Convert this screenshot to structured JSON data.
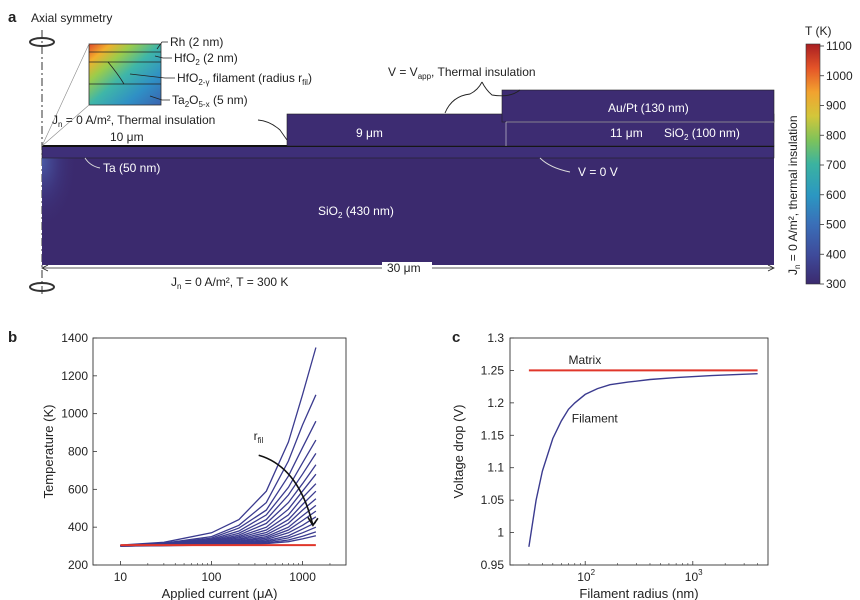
{
  "panel_a": {
    "letter": "a",
    "axial_symmetry": "Axial symmetry",
    "inset_labels": {
      "rh": "Rh (2 nm)",
      "hfo2_a": "HfO",
      "hfo2_sub": "2",
      "hfo2_b": " (2 nm)",
      "fil_a": "HfO",
      "fil_sub": "2-γ",
      "fil_b": " filament (radius r",
      "fil_sub2": "fil",
      "fil_c": ")",
      "ta2o5_a": "Ta",
      "ta2o5_sub1": "2",
      "ta2o5_b": "O",
      "ta2o5_sub2": "5-x",
      "ta2o5_c": " (5 nm)"
    },
    "top_bc_a": "V = V",
    "top_bc_sub": "app",
    "top_bc_b": ", Thermal insulation",
    "left_bc_a": "J",
    "left_bc_sub": "n",
    "left_bc_b": " = 0 A/m², Thermal insulation",
    "dim_10": "10 μm",
    "dim_9": "9 μm",
    "dim_11": "11 μm",
    "aupt": "Au/Pt (130 nm)",
    "sio2_top_a": "SiO",
    "sio2_top_sub": "2",
    "sio2_top_b": " (100 nm)",
    "ta": "Ta (50 nm)",
    "v0": "V = 0 V",
    "sio2_bulk_a": "SiO",
    "sio2_bulk_sub": "2",
    "sio2_bulk_b": " (430 nm)",
    "dim_30": "30 μm",
    "bottom_bc_a": "J",
    "bottom_bc_sub": "n",
    "bottom_bc_b": " = 0 A/m², T = 300 K",
    "right_bc_a": "J",
    "right_bc_sub": "n",
    "right_bc_b": " = 0 A/m², thermal insulation",
    "colorbar_title": "T (K)",
    "colorbar_ticks": [
      "1100",
      "1000",
      "900",
      "800",
      "700",
      "600",
      "500",
      "400",
      "300"
    ]
  },
  "chart_data": [
    {
      "type": "line",
      "panel": "b",
      "xlabel": "Applied current (μA)",
      "ylabel": "Temperature (K)",
      "xscale": "log",
      "xlim": [
        5,
        3000
      ],
      "ylim": [
        200,
        1400
      ],
      "xticks": [
        "10",
        "100",
        "1000"
      ],
      "yticks": [
        "200",
        "400",
        "600",
        "800",
        "1000",
        "1200",
        "1400"
      ],
      "annotation": "r",
      "annotation_sub": "fil",
      "x": [
        10,
        30,
        100,
        200,
        400,
        700,
        1000,
        1400
      ],
      "series": [
        {
          "values": [
            305,
            320,
            370,
            440,
            590,
            850,
            1100,
            1350
          ]
        },
        {
          "values": [
            304,
            316,
            350,
            410,
            530,
            750,
            940,
            1100
          ]
        },
        {
          "values": [
            304,
            314,
            342,
            395,
            490,
            670,
            820,
            960
          ]
        },
        {
          "values": [
            303,
            312,
            336,
            380,
            465,
            610,
            740,
            860
          ]
        },
        {
          "values": [
            303,
            311,
            331,
            368,
            440,
            570,
            680,
            790
          ]
        },
        {
          "values": [
            302,
            310,
            327,
            358,
            420,
            530,
            630,
            730
          ]
        },
        {
          "values": [
            302,
            309,
            324,
            350,
            400,
            495,
            590,
            680
          ]
        },
        {
          "values": [
            302,
            308,
            321,
            343,
            385,
            465,
            555,
            630
          ]
        },
        {
          "values": [
            301,
            307,
            318,
            337,
            372,
            440,
            520,
            590
          ]
        },
        {
          "values": [
            301,
            306,
            316,
            332,
            360,
            420,
            490,
            550
          ]
        },
        {
          "values": [
            301,
            306,
            314,
            327,
            350,
            400,
            460,
            515
          ]
        },
        {
          "values": [
            301,
            305,
            312,
            323,
            342,
            385,
            435,
            485
          ]
        },
        {
          "values": [
            300,
            304,
            310,
            319,
            335,
            370,
            410,
            455
          ]
        },
        {
          "values": [
            300,
            304,
            309,
            316,
            328,
            355,
            390,
            425
          ]
        },
        {
          "values": [
            300,
            303,
            307,
            313,
            322,
            343,
            370,
            400
          ]
        },
        {
          "values": [
            300,
            303,
            306,
            310,
            317,
            332,
            352,
            375
          ]
        },
        {
          "values": [
            300,
            302,
            305,
            308,
            313,
            323,
            338,
            355
          ]
        }
      ],
      "reference": {
        "x": [
          10,
          1400
        ],
        "values": [
          305,
          305
        ]
      },
      "colors": {
        "series": "#3b3b8f",
        "reference": "#e0362a"
      }
    },
    {
      "type": "line",
      "panel": "c",
      "xlabel": "Filament radius (nm)",
      "ylabel": "Voltage drop (V)",
      "xscale": "log",
      "xlim": [
        20,
        5000
      ],
      "ylim": [
        0.95,
        1.3
      ],
      "yticks": [
        "0.95",
        "1",
        "1.05",
        "1.1",
        "1.15",
        "1.2",
        "1.25",
        "1.3"
      ],
      "xticks_base": "10",
      "xticks_exp": [
        "2",
        "3"
      ],
      "series": [
        {
          "name": "Matrix",
          "x": [
            30,
            4000
          ],
          "values": [
            1.25,
            1.25
          ],
          "color": "#e0362a"
        },
        {
          "name": "Filament",
          "x": [
            30,
            35,
            40,
            50,
            60,
            70,
            80,
            100,
            130,
            170,
            250,
            400,
            700,
            1500,
            4000
          ],
          "values": [
            0.978,
            1.05,
            1.095,
            1.145,
            1.172,
            1.19,
            1.2,
            1.213,
            1.222,
            1.228,
            1.232,
            1.236,
            1.239,
            1.242,
            1.245
          ],
          "color": "#3b3b8f"
        }
      ]
    }
  ],
  "panel_b_letter": "b",
  "panel_c_letter": "c"
}
